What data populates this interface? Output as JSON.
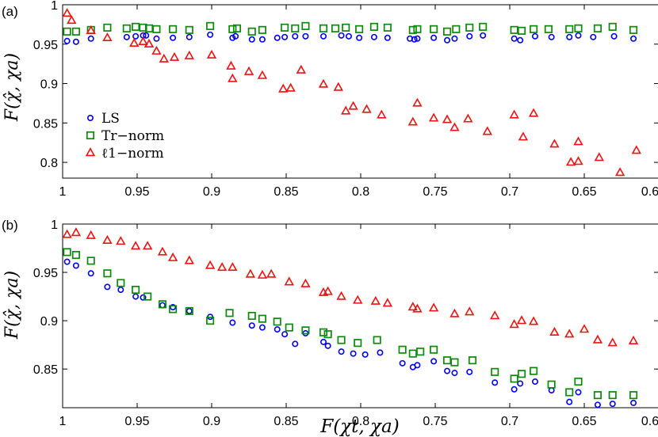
{
  "chart_data": [
    {
      "panel": "(a)",
      "type": "scatter",
      "xlabel": "",
      "ylabel": "F(χ̂, χa)",
      "xlim": [
        1.0,
        0.6
      ],
      "ylim": [
        0.78,
        1.0
      ],
      "xticks": [
        "1",
        "0.95",
        "0.9",
        "0.85",
        "0.8",
        "0.75",
        "0.7",
        "0.65",
        "0.6"
      ],
      "yticks": [
        "0.8",
        "0.85",
        "0.9",
        "0.95",
        "1"
      ],
      "legend_position": "lower-left",
      "series": [
        {
          "name": "LS",
          "marker": "circle",
          "color": "#0000ee",
          "x": [
            0.997,
            0.991,
            0.981,
            0.957,
            0.951,
            0.946,
            0.944,
            0.937,
            0.926,
            0.915,
            0.901,
            0.886,
            0.884,
            0.873,
            0.866,
            0.856,
            0.851,
            0.844,
            0.837,
            0.825,
            0.813,
            0.808,
            0.801,
            0.791,
            0.782,
            0.767,
            0.764,
            0.762,
            0.751,
            0.742,
            0.737,
            0.727,
            0.718,
            0.697,
            0.693,
            0.683,
            0.672,
            0.66,
            0.654,
            0.644,
            0.63,
            0.617
          ],
          "y": [
            0.954,
            0.953,
            0.957,
            0.959,
            0.96,
            0.961,
            0.961,
            0.957,
            0.958,
            0.959,
            0.962,
            0.958,
            0.96,
            0.956,
            0.956,
            0.958,
            0.959,
            0.96,
            0.96,
            0.96,
            0.961,
            0.96,
            0.958,
            0.959,
            0.958,
            0.957,
            0.956,
            0.957,
            0.958,
            0.955,
            0.957,
            0.96,
            0.961,
            0.957,
            0.955,
            0.96,
            0.959,
            0.959,
            0.961,
            0.959,
            0.96,
            0.957
          ]
        },
        {
          "name": "Tr−norm",
          "marker": "square",
          "color": "#0a8a0a",
          "x": [
            0.997,
            0.991,
            0.981,
            0.97,
            0.957,
            0.951,
            0.946,
            0.942,
            0.937,
            0.926,
            0.915,
            0.901,
            0.886,
            0.883,
            0.873,
            0.866,
            0.851,
            0.844,
            0.837,
            0.825,
            0.817,
            0.81,
            0.801,
            0.791,
            0.782,
            0.765,
            0.762,
            0.751,
            0.742,
            0.736,
            0.727,
            0.718,
            0.697,
            0.692,
            0.684,
            0.674,
            0.66,
            0.654,
            0.641,
            0.631,
            0.617
          ],
          "y": [
            0.966,
            0.966,
            0.968,
            0.971,
            0.97,
            0.972,
            0.971,
            0.97,
            0.969,
            0.969,
            0.968,
            0.973,
            0.969,
            0.97,
            0.966,
            0.968,
            0.971,
            0.97,
            0.973,
            0.97,
            0.97,
            0.971,
            0.969,
            0.972,
            0.971,
            0.968,
            0.969,
            0.969,
            0.966,
            0.969,
            0.971,
            0.972,
            0.968,
            0.967,
            0.969,
            0.969,
            0.969,
            0.97,
            0.97,
            0.972,
            0.968
          ]
        },
        {
          "name": "ℓ1−norm",
          "marker": "triangle",
          "color": "#ee1111",
          "x": [
            0.997,
            0.994,
            0.981,
            0.97,
            0.952,
            0.946,
            0.942,
            0.937,
            0.932,
            0.925,
            0.915,
            0.9,
            0.887,
            0.886,
            0.875,
            0.866,
            0.852,
            0.847,
            0.84,
            0.825,
            0.815,
            0.81,
            0.805,
            0.796,
            0.786,
            0.765,
            0.762,
            0.751,
            0.742,
            0.737,
            0.728,
            0.715,
            0.697,
            0.691,
            0.684,
            0.67,
            0.659,
            0.654,
            0.654,
            0.64,
            0.626,
            0.615
          ],
          "y": [
            0.989,
            0.98,
            0.967,
            0.958,
            0.951,
            0.953,
            0.95,
            0.941,
            0.931,
            0.933,
            0.935,
            0.936,
            0.922,
            0.906,
            0.915,
            0.91,
            0.893,
            0.894,
            0.917,
            0.899,
            0.895,
            0.865,
            0.871,
            0.867,
            0.86,
            0.851,
            0.875,
            0.856,
            0.854,
            0.844,
            0.855,
            0.839,
            0.86,
            0.832,
            0.862,
            0.823,
            0.8,
            0.801,
            0.826,
            0.806,
            0.787,
            0.815
          ]
        }
      ]
    },
    {
      "panel": "(b)",
      "type": "scatter",
      "xlabel": "F(χt, χa)",
      "ylabel": "F(χ̂, χa)",
      "xlim": [
        1.0,
        0.6
      ],
      "ylim": [
        0.81,
        1.0
      ],
      "xticks": [
        "1",
        "0.95",
        "0.9",
        "0.85",
        "0.8",
        "0.75",
        "0.7",
        "0.65",
        "0.6"
      ],
      "yticks": [
        "0.85",
        "0.9",
        "0.95",
        "1"
      ],
      "series": [
        {
          "name": "LS",
          "marker": "circle",
          "color": "#0000ee",
          "x": [
            0.997,
            0.991,
            0.981,
            0.97,
            0.961,
            0.951,
            0.946,
            0.933,
            0.926,
            0.915,
            0.901,
            0.886,
            0.873,
            0.866,
            0.856,
            0.851,
            0.844,
            0.837,
            0.825,
            0.822,
            0.813,
            0.805,
            0.797,
            0.787,
            0.772,
            0.765,
            0.762,
            0.751,
            0.742,
            0.737,
            0.727,
            0.71,
            0.697,
            0.693,
            0.683,
            0.672,
            0.66,
            0.654,
            0.641,
            0.631,
            0.617
          ],
          "y": [
            0.961,
            0.957,
            0.949,
            0.935,
            0.932,
            0.925,
            0.924,
            0.916,
            0.914,
            0.91,
            0.904,
            0.898,
            0.895,
            0.893,
            0.891,
            0.886,
            0.876,
            0.887,
            0.878,
            0.874,
            0.868,
            0.866,
            0.865,
            0.867,
            0.856,
            0.852,
            0.854,
            0.858,
            0.848,
            0.846,
            0.847,
            0.836,
            0.829,
            0.835,
            0.837,
            0.828,
            0.816,
            0.826,
            0.813,
            0.814,
            0.815
          ]
        },
        {
          "name": "Tr−norm",
          "marker": "square",
          "color": "#0a8a0a",
          "x": [
            0.997,
            0.991,
            0.981,
            0.97,
            0.961,
            0.951,
            0.943,
            0.933,
            0.926,
            0.915,
            0.901,
            0.888,
            0.873,
            0.866,
            0.856,
            0.848,
            0.837,
            0.825,
            0.822,
            0.813,
            0.802,
            0.789,
            0.772,
            0.765,
            0.76,
            0.751,
            0.742,
            0.737,
            0.725,
            0.71,
            0.697,
            0.692,
            0.684,
            0.672,
            0.66,
            0.654,
            0.641,
            0.631,
            0.617
          ],
          "y": [
            0.971,
            0.968,
            0.962,
            0.949,
            0.939,
            0.932,
            0.925,
            0.917,
            0.912,
            0.91,
            0.9,
            0.908,
            0.905,
            0.902,
            0.899,
            0.893,
            0.89,
            0.888,
            0.886,
            0.88,
            0.877,
            0.88,
            0.87,
            0.866,
            0.868,
            0.87,
            0.859,
            0.857,
            0.859,
            0.847,
            0.84,
            0.845,
            0.848,
            0.834,
            0.826,
            0.837,
            0.823,
            0.823,
            0.823
          ]
        },
        {
          "name": "ℓ1−norm",
          "marker": "triangle",
          "color": "#ee1111",
          "x": [
            0.997,
            0.991,
            0.981,
            0.97,
            0.961,
            0.951,
            0.943,
            0.933,
            0.926,
            0.915,
            0.901,
            0.893,
            0.886,
            0.874,
            0.866,
            0.86,
            0.848,
            0.837,
            0.825,
            0.822,
            0.813,
            0.802,
            0.79,
            0.782,
            0.765,
            0.762,
            0.751,
            0.737,
            0.727,
            0.71,
            0.697,
            0.692,
            0.684,
            0.67,
            0.66,
            0.65,
            0.641,
            0.631,
            0.617
          ],
          "y": [
            0.989,
            0.991,
            0.988,
            0.983,
            0.982,
            0.977,
            0.977,
            0.971,
            0.965,
            0.962,
            0.957,
            0.955,
            0.955,
            0.948,
            0.947,
            0.948,
            0.94,
            0.938,
            0.929,
            0.93,
            0.925,
            0.921,
            0.92,
            0.918,
            0.914,
            0.912,
            0.913,
            0.907,
            0.909,
            0.905,
            0.896,
            0.9,
            0.899,
            0.888,
            0.886,
            0.891,
            0.88,
            0.877,
            0.879
          ]
        }
      ]
    }
  ]
}
